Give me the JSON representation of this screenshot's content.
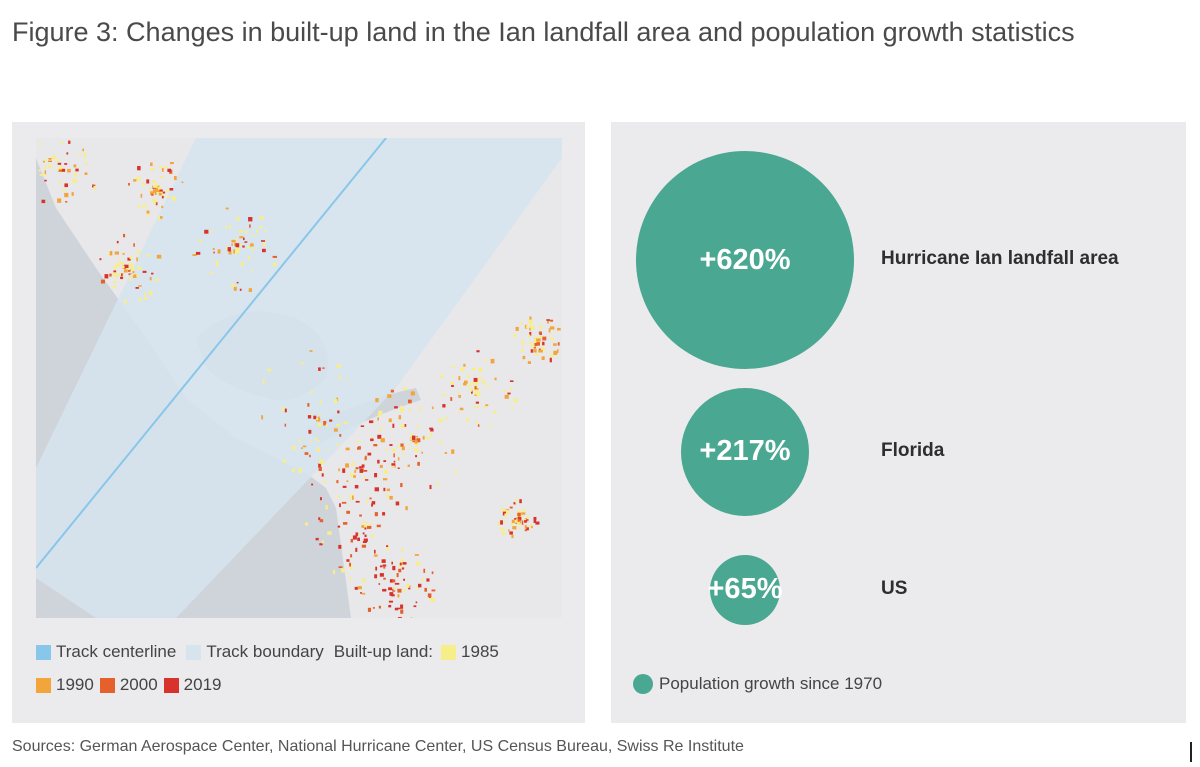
{
  "title": "Figure 3: Changes in built-up land in the Ian landfall area and population growth statistics",
  "map": {
    "legend": {
      "track_centerline": "Track centerline",
      "track_boundary": "Track boundary",
      "built_up_label": "Built-up land:",
      "years": [
        "1985",
        "1990",
        "2000",
        "2019"
      ]
    },
    "colors": {
      "land": "#e8e8ea",
      "water": "#cfd4db",
      "track_boundary": "#d6e4ee",
      "track_centerline": "#88c6ea",
      "y1985": "#f7ee8a",
      "y1990": "#f2a53a",
      "y2000": "#e6602c",
      "y2019": "#d8322c"
    }
  },
  "chart_data": {
    "type": "bubble",
    "title": "Population growth since 1970",
    "categories": [
      "Hurricane Ian landfall area",
      "Florida",
      "US"
    ],
    "values": [
      620,
      217,
      65
    ],
    "value_labels": [
      "+620%",
      "+217%",
      "+65%"
    ],
    "unit": "%",
    "color": "#4aa791",
    "legend": "Population growth since 1970"
  },
  "sources": "Sources: German Aerospace Center, National Hurricane Center, US Census Bureau, Swiss Re Institute"
}
